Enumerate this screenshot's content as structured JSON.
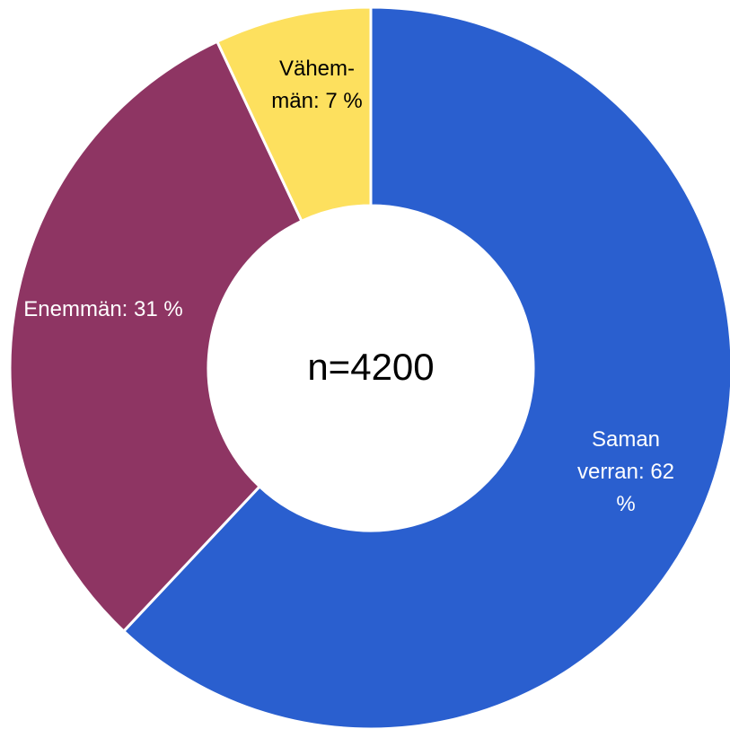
{
  "chart_data": {
    "type": "donut",
    "labels": [
      "Saman verran: 62 %",
      "Enemmän: 31 %",
      "Väh­memmän: 7 %"
    ],
    "values": [
      62,
      31,
      7
    ],
    "colors": [
      "#2a5fcf",
      "#8e3563",
      "#fde05e"
    ],
    "label_colors": [
      "#ffffff",
      "#ffffff",
      "#000000"
    ],
    "center_label": "n=4200"
  }
}
